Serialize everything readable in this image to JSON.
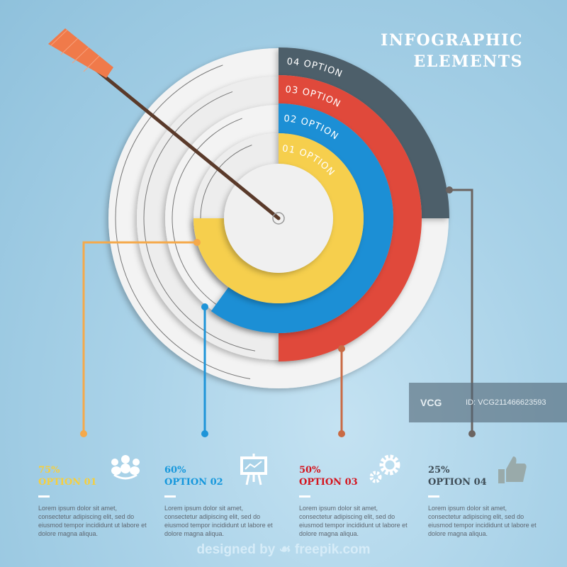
{
  "title": {
    "line1": "INFOGRAPHIC",
    "line2": "ELEMENTS"
  },
  "segments": [
    {
      "label": "01 OPTION",
      "color": "#f6cf4e",
      "percent": 75
    },
    {
      "label": "02 OPTION",
      "color": "#1e8fd5",
      "percent": 60
    },
    {
      "label": "03 OPTION",
      "color": "#e0483a",
      "percent": 50
    },
    {
      "label": "04 OPTION",
      "color": "#4e5f6a",
      "percent": 25
    }
  ],
  "options": [
    {
      "percent": "75%",
      "name": "OPTION 01",
      "color": "#f6cf3e",
      "icon": "people-group-icon",
      "desc": "Lorem ipsum dolor sit amet, consectetur adipiscing elit, sed do eiusmod tempor incididunt ut labore et dolore magna aliqua."
    },
    {
      "percent": "60%",
      "name": "OPTION 02",
      "color": "#1597dc",
      "icon": "presentation-chart-icon",
      "desc": "Lorem ipsum dolor sit amet, consectetur adipiscing elit, sed do eiusmod tempor incididunt ut labore et dolore magna aliqua."
    },
    {
      "percent": "50%",
      "name": "OPTION 03",
      "color": "#d4141e",
      "icon": "gears-icon",
      "desc": "Lorem ipsum dolor sit amet, consectetur adipiscing elit, sed do eiusmod tempor incididunt ut labore et dolore magna aliqua."
    },
    {
      "percent": "25%",
      "name": "OPTION 04",
      "color": "#3f4d57",
      "icon": "thumbs-up-icon",
      "desc": "Lorem ipsum dolor sit amet, consectetur adipiscing elit, sed do eiusmod tempor incididunt ut labore et dolore magna aliqua."
    }
  ],
  "footer": "designed by ☙ freepik.com",
  "watermark": {
    "logo": "VCG",
    "id": "ID: VCG211466623593"
  }
}
